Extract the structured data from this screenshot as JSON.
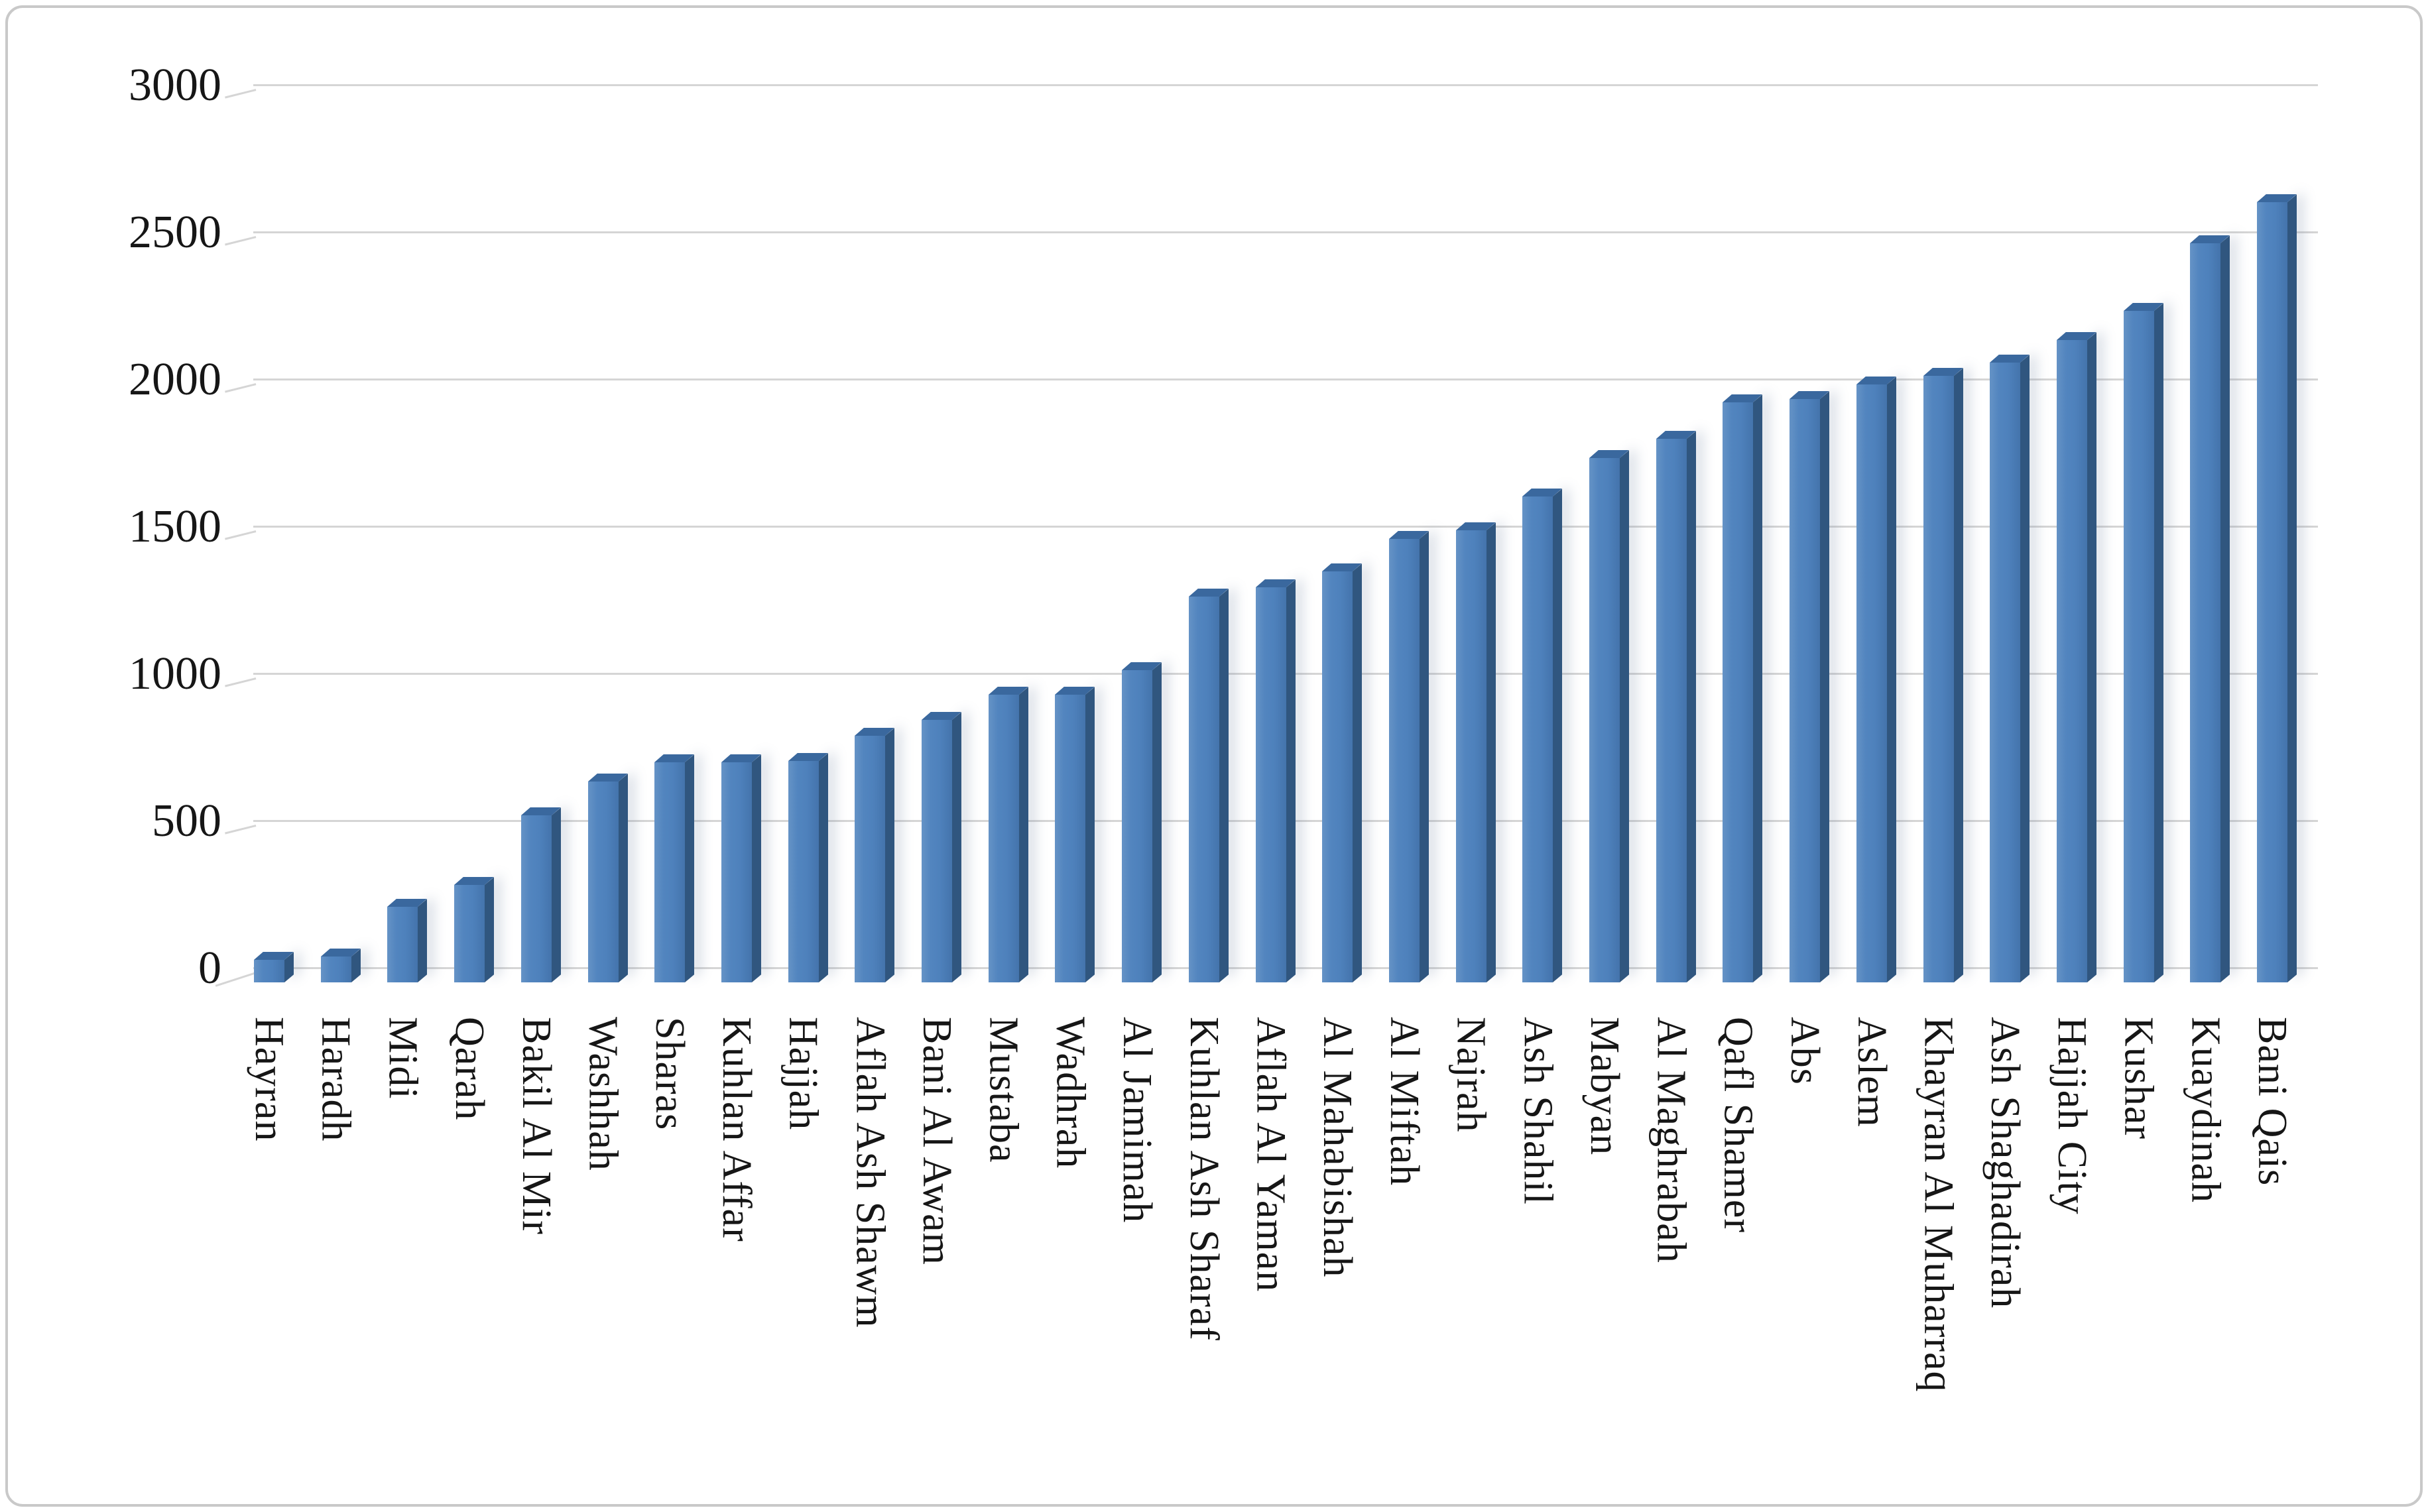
{
  "chart_data": {
    "type": "bar",
    "title": "",
    "xlabel": "",
    "ylabel": "",
    "categories": [
      "Hayran",
      "Haradh",
      "Midi",
      "Qarah",
      "Bakil Al Mir",
      "Washhah",
      "Sharas",
      "Kuhlan Affar",
      "Hajjah",
      "Aflah Ash Shawm",
      "Bani Al Awam",
      "Mustaba",
      "Wadhrah",
      "Al Jamimah",
      "Kuhlan Ash Sharaf",
      "Aflah Al Yaman",
      "Al Mahabishah",
      "Al Miftah",
      "Najrah",
      "Ash Shahil",
      "Mabyan",
      "Al Maghrabah",
      "Qafl Shamer",
      "Abs",
      "Aslem",
      "Khayran Al Muharraq",
      "Ash Shaghadirah",
      "Hajjah City",
      "Kushar",
      "Kuaydinah",
      "Bani Qais"
    ],
    "values": [
      25,
      35,
      205,
      280,
      515,
      630,
      695,
      695,
      700,
      785,
      840,
      925,
      925,
      1010,
      1260,
      1290,
      1345,
      1455,
      1485,
      1600,
      1730,
      1795,
      1920,
      1930,
      1980,
      2010,
      2055,
      2130,
      2230,
      2460,
      2600
    ],
    "ylim": [
      0,
      3000
    ],
    "ytick_step": 500,
    "ytick_labels": [
      "0",
      "500",
      "1000",
      "1500",
      "2000",
      "2500",
      "3000"
    ],
    "grid": "horizontal gridlines on",
    "legend_position": "none",
    "style": "excel-3d-column",
    "bar_face_color": "#4e81bc",
    "bar_side_color": "#30567f",
    "bar_cap_color": "#3a689e",
    "gridline_color": "#d5d5d5",
    "axis_text_color": "#161616",
    "background_color": "#ffffff",
    "border_color": "#c9c9c9"
  }
}
